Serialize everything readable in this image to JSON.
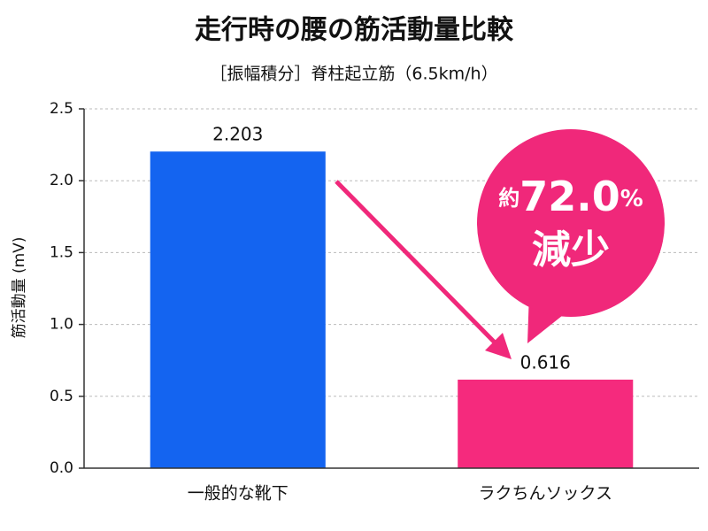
{
  "chart_data": {
    "type": "bar",
    "title": "走行時の腰の筋活動量比較",
    "subtitle": "［振幅積分］脊柱起立筋（6.5km/h）",
    "y_label": "筋活動量 (mV)",
    "categories": [
      "一般的な靴下",
      "ラクちんソックス"
    ],
    "values": [
      2.203,
      0.616
    ],
    "colors": [
      "#1464f0",
      "#f52a7d"
    ],
    "ylim": [
      0,
      2.5
    ],
    "yticks": [
      {
        "value": 0,
        "label": "0.0"
      },
      0.5,
      {
        "value": 1,
        "label": "1.0"
      },
      1.5,
      {
        "value": 2,
        "label": "2.0"
      },
      2.5
    ],
    "grid": true,
    "annotation": {
      "prefix": "約",
      "number": "72.0",
      "unit": "%",
      "text": "減少"
    }
  }
}
